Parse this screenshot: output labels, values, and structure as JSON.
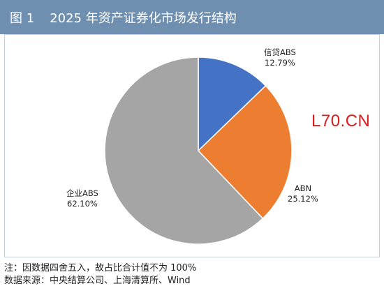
{
  "figure": {
    "number": "图 1",
    "title": "2025 年资产证券化市场发行结构"
  },
  "watermark": "L70.CN",
  "chart_data": {
    "type": "pie",
    "slices": [
      {
        "label": "信贷ABS",
        "value": 12.79,
        "value_label": "12.79%",
        "color": "#4472c4"
      },
      {
        "label": "ABN",
        "value": 25.12,
        "value_label": "25.12%",
        "color": "#ed7d31"
      },
      {
        "label": "企业ABS",
        "value": 62.1,
        "value_label": "62.10%",
        "color": "#a5a5a5"
      }
    ],
    "start_angle": "12 o'clock",
    "direction": "clockwise"
  },
  "notes": {
    "note1": "注：因数据四舍五入，故占比合计值不为 100%",
    "source": "数据来源：中央结算公司、上海清算所、Wind"
  }
}
